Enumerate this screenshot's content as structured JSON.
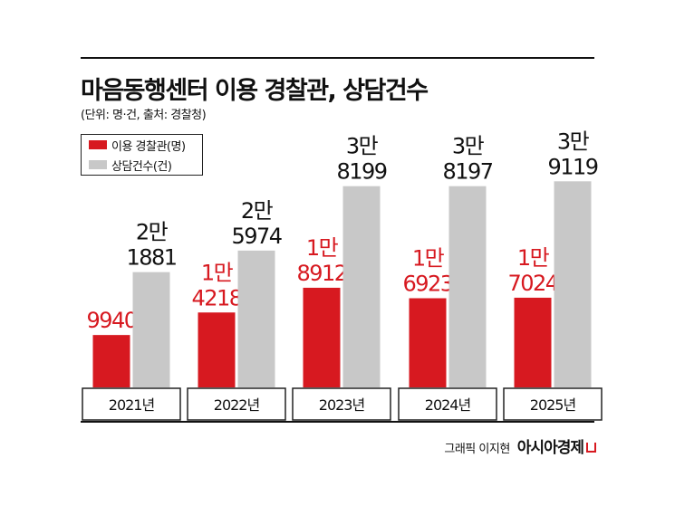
{
  "title": "마음동행센터 이용 경찰관, 상담건수",
  "subtitle": "(단위: 명·건, 출처: 경찰청)",
  "footer": {
    "credit": "그래픽 이지현",
    "brand": "아시아경제"
  },
  "colors": {
    "officers": "#d71920",
    "counseling": "#c8c8c8",
    "text_officers": "#d71920",
    "text_counseling": "#111111"
  },
  "chart_data": {
    "type": "bar",
    "categories": [
      "2021년",
      "2022년",
      "2023년",
      "2024년",
      "2025년"
    ],
    "series": [
      {
        "name": "이용 경찰관(명)",
        "values": [
          9940,
          14218,
          18912,
          16923,
          17024
        ]
      },
      {
        "name": "상담건수(건)",
        "values": [
          21881,
          25974,
          38199,
          38197,
          39119
        ]
      }
    ],
    "data_labels": {
      "이용 경찰관(명)": [
        [
          "9940"
        ],
        [
          "1만",
          "4218"
        ],
        [
          "1만",
          "8912"
        ],
        [
          "1만",
          "6923"
        ],
        [
          "1만",
          "7024"
        ]
      ],
      "상담건수(건)": [
        [
          "2만",
          "1881"
        ],
        [
          "2만",
          "5974"
        ],
        [
          "3만",
          "8199"
        ],
        [
          "3만",
          "8197"
        ],
        [
          "3만",
          "9119"
        ]
      ]
    },
    "legend": "top-left",
    "grid": false
  }
}
